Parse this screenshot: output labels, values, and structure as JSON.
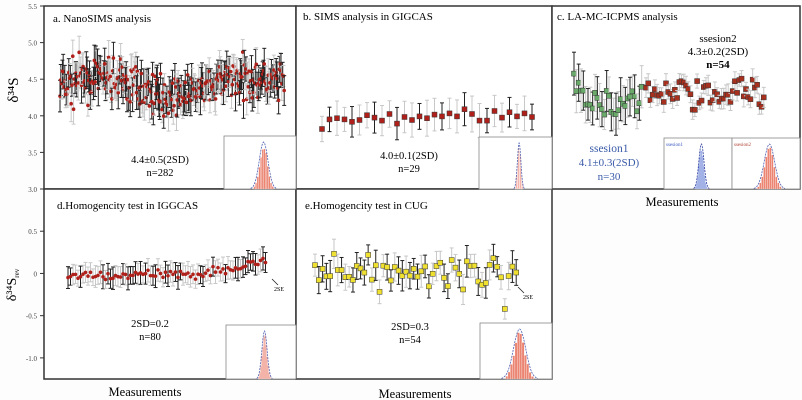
{
  "figure": {
    "x_label": "Measurements",
    "top_y_label": "δ³⁴S",
    "bottom_y_label": "δ³⁴S",
    "bottom_y_label_sub": "rev"
  },
  "chart_data": [
    {
      "id": "a",
      "type": "scatter",
      "title": "a. NanoSIMS analysis",
      "ylabel": "δ34S",
      "ylim": [
        3.0,
        5.5
      ],
      "yticks": [
        "3.0",
        "3.5",
        "4.0",
        "4.5",
        "5.0",
        "5.5"
      ],
      "ytick_values": [
        3.0,
        3.5,
        4.0,
        4.5,
        5.0,
        5.5
      ],
      "stat_text": "4.4±0.5(2SD)",
      "n_text": "n=282",
      "n": 282,
      "mean": 4.4,
      "two_sd": 0.5,
      "marker_color": "#b0201a",
      "marker": "circle",
      "error_bar_color": "#222222",
      "inset": "histogram"
    },
    {
      "id": "b",
      "type": "scatter",
      "title": "b. SIMS analysis in GIGCAS",
      "ylim": [
        3.0,
        5.5
      ],
      "stat_text": "4.0±0.1(2SD)",
      "n_text": "n=29",
      "n": 29,
      "mean": 4.0,
      "two_sd": 0.1,
      "values": [
        3.85,
        4.01,
        4.03,
        4.01,
        3.97,
        4.0,
        4.08,
        4.04,
        3.99,
        4.1,
        3.94,
        4.05,
        4.0,
        4.06,
        4.03,
        4.09,
        4.06,
        4.11,
        4.06,
        4.18,
        4.1,
        3.99,
        3.99,
        4.15,
        4.04,
        4.13,
        4.06,
        4.11,
        4.05
      ],
      "marker_color": "#b0201a",
      "marker": "square",
      "inset": "histogram"
    },
    {
      "id": "c",
      "type": "scatter",
      "title": "c. LA-MC-ICPMS analysis",
      "ylim": [
        3.0,
        5.5
      ],
      "series": [
        {
          "name": "ssesion1",
          "stat_text": "4.1±0.3(2SD)",
          "n_text": "n=30",
          "n": 30,
          "mean": 4.1,
          "two_sd": 0.3,
          "color": "#6aaa6a",
          "label_color": "#3a5aa8"
        },
        {
          "name": "ssesion2",
          "stat_text": "4.3±0.2(2SD)",
          "n_text": "n=54",
          "n": 54,
          "mean": 4.3,
          "two_sd": 0.2,
          "color": "#a8301e",
          "label_color": "#222222"
        }
      ],
      "inset_labels": [
        "ssesion1",
        "ssesion2"
      ],
      "inset_colors": [
        "#3a5ac0",
        "#e0604a"
      ],
      "inset": "histogram"
    },
    {
      "id": "d",
      "type": "scatter",
      "title": "d.Homogencity test in IGGCAS",
      "ylabel": "δ34S_rev",
      "ylim": [
        -1.25,
        1.0
      ],
      "yticks": [
        "0.5",
        "0",
        "-0.5",
        "-1.0"
      ],
      "ytick_values": [
        0.5,
        0,
        -0.5,
        -1.0
      ],
      "stat_text": "2SD=0.2",
      "n_text": "n=80",
      "n": 80,
      "two_sd": 0.2,
      "annotation": "2SE",
      "marker_color": "#b0201a",
      "marker": "circle",
      "inset": "histogram"
    },
    {
      "id": "e",
      "type": "scatter",
      "title": "e.Homogencity test in CUG",
      "ylim": [
        -1.25,
        1.0
      ],
      "stat_text": "2SD=0.3",
      "n_text": "n=54",
      "n": 54,
      "two_sd": 0.3,
      "annotation": "2SE",
      "marker_color": "#f0e030",
      "marker": "square",
      "inset": "histogram"
    }
  ]
}
